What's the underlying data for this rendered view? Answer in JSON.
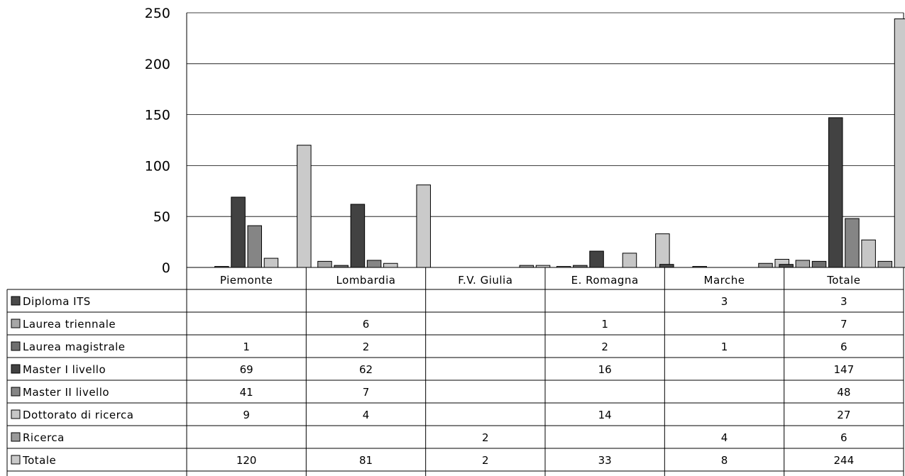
{
  "chart_data": {
    "type": "bar",
    "categories": [
      "Piemonte",
      "Lombardia",
      "F.V. Giulia",
      "E. Romagna",
      "Marche",
      "Totale"
    ],
    "ylim": [
      0,
      250
    ],
    "yticks": [
      0,
      50,
      100,
      150,
      200,
      250
    ],
    "grid": true,
    "legend": "table-left",
    "title": "",
    "xlabel": "",
    "ylabel": "",
    "series": [
      {
        "name": "Diploma ITS",
        "color": "#4a4a4a",
        "values": [
          null,
          null,
          null,
          null,
          3,
          3
        ]
      },
      {
        "name": "Laurea triennale",
        "color": "#a6a6a6",
        "values": [
          null,
          6,
          null,
          1,
          null,
          7
        ]
      },
      {
        "name": "Laurea magistrale",
        "color": "#6e6e6e",
        "values": [
          1,
          2,
          null,
          2,
          1,
          6
        ]
      },
      {
        "name": "Master I livello",
        "color": "#424242",
        "values": [
          69,
          62,
          null,
          16,
          null,
          147
        ]
      },
      {
        "name": "Master II livello",
        "color": "#858585",
        "values": [
          41,
          7,
          null,
          null,
          null,
          48
        ]
      },
      {
        "name": "Dottorato di ricerca",
        "color": "#c6c6c6",
        "values": [
          9,
          4,
          null,
          14,
          null,
          27
        ]
      },
      {
        "name": "Ricerca",
        "color": "#9a9a9a",
        "values": [
          null,
          null,
          2,
          null,
          4,
          6
        ]
      },
      {
        "name": "Totale",
        "color": "#cacaca",
        "values": [
          120,
          81,
          2,
          33,
          8,
          244
        ]
      }
    ]
  }
}
